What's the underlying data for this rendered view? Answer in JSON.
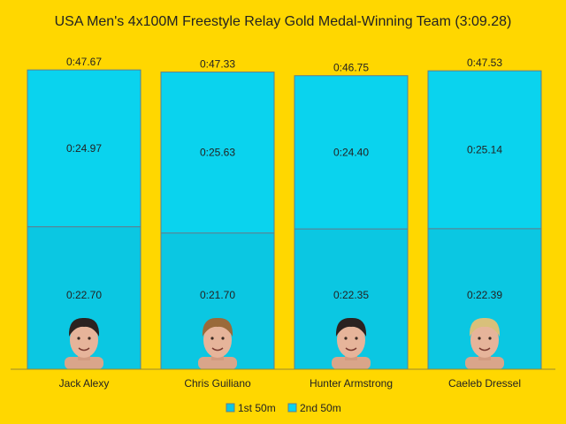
{
  "chart_data": {
    "type": "bar",
    "stacked": true,
    "title": "USA Men's 4x100M Freestyle Relay Gold Medal-Winning Team (3:09.28)",
    "categories": [
      "Jack Alexy",
      "Chris Guiliano",
      "Hunter Armstrong",
      "Caeleb Dressel"
    ],
    "series": [
      {
        "name": "1st 50m",
        "values": [
          22.7,
          21.7,
          22.35,
          22.39
        ],
        "labels": [
          "0:22.70",
          "0:21.70",
          "0:22.35",
          "0:22.39"
        ],
        "color": "#0BC7E2"
      },
      {
        "name": "2nd 50m",
        "values": [
          24.97,
          25.63,
          24.4,
          25.14
        ],
        "labels": [
          "0:24.97",
          "0:25.63",
          "0:24.40",
          "0:25.14"
        ],
        "color": "#0AD3EE"
      }
    ],
    "totals": [
      47.67,
      47.33,
      46.75,
      47.53
    ],
    "total_labels": [
      "0:47.67",
      "0:47.33",
      "0:46.75",
      "0:47.53"
    ],
    "ylim": [
      0,
      50
    ],
    "xlabel": "",
    "ylabel": "",
    "legend": "bottom",
    "grid": false,
    "border_color": "#5F7F8F"
  }
}
